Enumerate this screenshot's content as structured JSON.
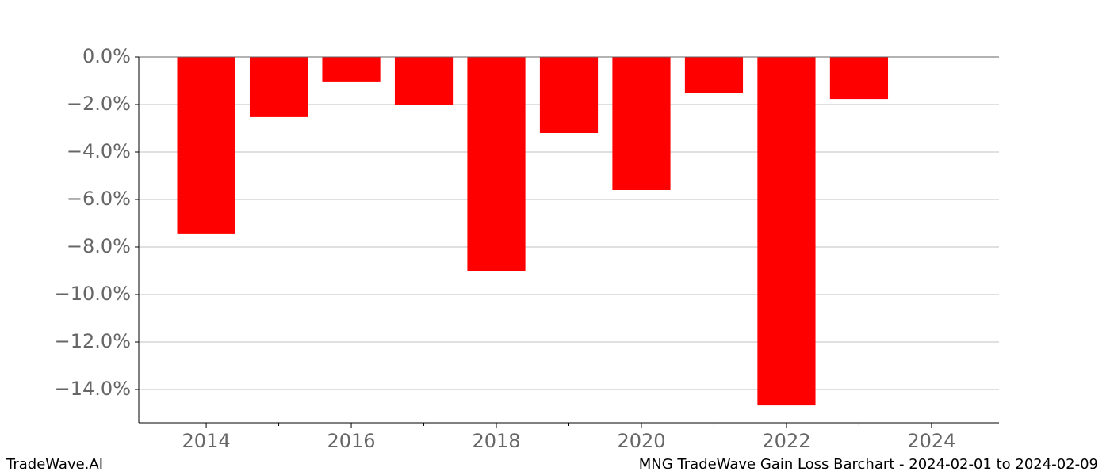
{
  "chart_data": {
    "type": "bar",
    "title": "MNG TradeWave Gain Loss Barchart - 2024-02-01 to 2024-02-09",
    "watermark": "TradeWave.AI",
    "x": [
      2014,
      2015,
      2016,
      2017,
      2018,
      2019,
      2020,
      2021,
      2022,
      2023
    ],
    "values": [
      -7.43,
      -2.53,
      -1.03,
      -2.0,
      -9.0,
      -3.2,
      -5.6,
      -1.53,
      -14.67,
      -1.77
    ],
    "color": "#ff0000",
    "xlim": [
      2013.07,
      2024.93
    ],
    "xticks": [
      2014,
      2016,
      2018,
      2020,
      2022,
      2024
    ],
    "xminor_ticks": [
      2015,
      2017,
      2019,
      2021,
      2023
    ],
    "ylim": [
      -15.4,
      0
    ],
    "yticks": [
      {
        "value": 0,
        "label": "0.0%"
      },
      {
        "value": -2,
        "label": "−2.0%"
      },
      {
        "value": -4,
        "label": "−4.0%"
      },
      {
        "value": -6,
        "label": "−6.0%"
      },
      {
        "value": -8,
        "label": "−8.0%"
      },
      {
        "value": -10,
        "label": "−10.0%"
      },
      {
        "value": -12,
        "label": "−12.0%"
      },
      {
        "value": -14,
        "label": "−14.0%"
      }
    ],
    "grid": true
  }
}
